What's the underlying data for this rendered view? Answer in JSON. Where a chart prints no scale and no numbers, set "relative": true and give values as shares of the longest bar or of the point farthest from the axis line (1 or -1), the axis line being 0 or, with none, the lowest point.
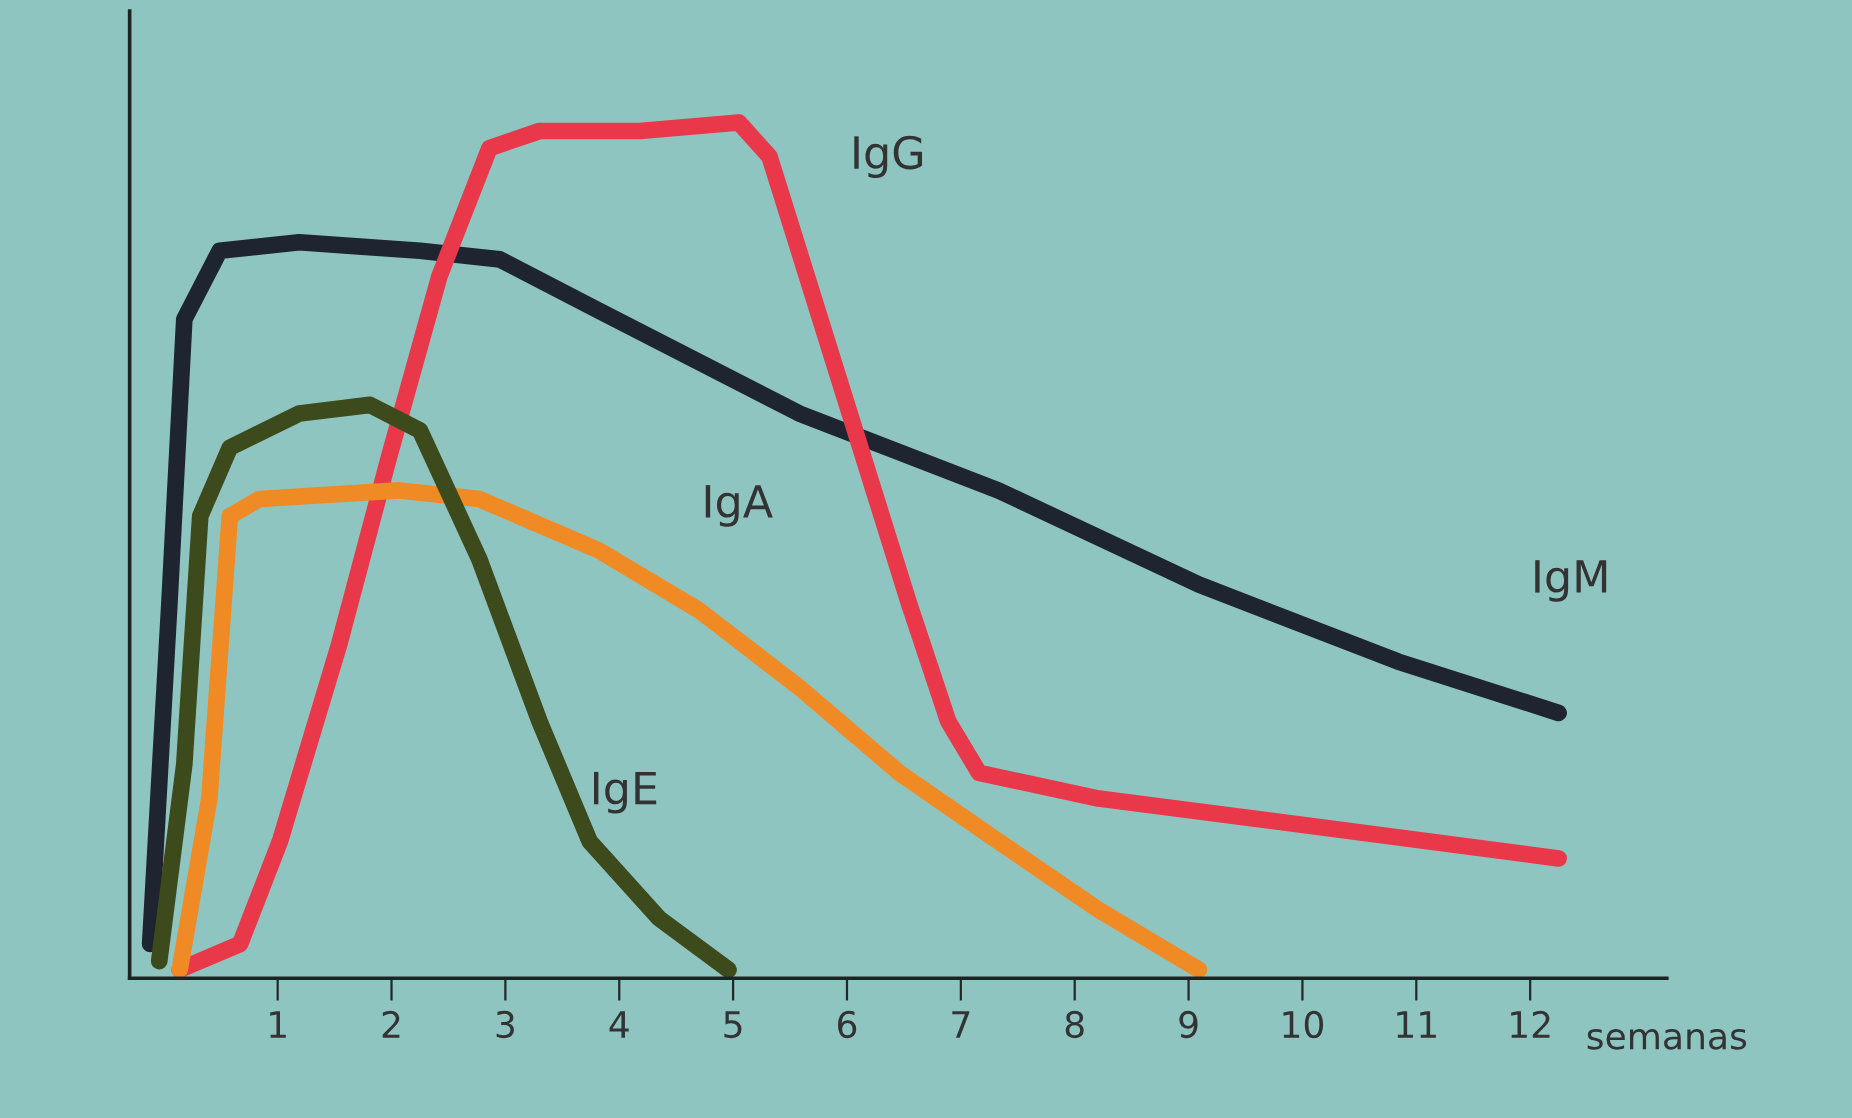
{
  "chart_data": {
    "type": "line",
    "relative": true,
    "xlabel": "semanas",
    "xlim": [
      -0.3,
      13.2
    ],
    "xticks": [
      1,
      2,
      3,
      4,
      5,
      6,
      7,
      8,
      9,
      10,
      11,
      12
    ],
    "grid": false,
    "legend": false,
    "marker": "none",
    "line_style": "solid",
    "series": [
      {
        "name": "IgM",
        "color": "#1e2430",
        "x": [
          -0.12,
          0.05,
          0.18,
          0.49,
          1.19,
          2.25,
          2.95,
          3.82,
          5.58,
          7.33,
          9.09,
          10.84,
          12.25
        ],
        "values": [
          0.04,
          0.44,
          0.77,
          0.85,
          0.86,
          0.85,
          0.84,
          0.78,
          0.66,
          0.57,
          0.46,
          0.37,
          0.31
        ]
      },
      {
        "name": "IgG",
        "color": "#e8384a",
        "x": [
          0.14,
          0.67,
          1.02,
          1.54,
          1.98,
          2.42,
          2.86,
          3.3,
          4.18,
          5.05,
          5.32,
          5.93,
          6.54,
          6.89,
          7.16,
          8.21,
          9.96,
          12.25
        ],
        "values": [
          0.01,
          0.04,
          0.16,
          0.39,
          0.61,
          0.82,
          0.97,
          0.99,
          0.99,
          1.0,
          0.96,
          0.7,
          0.44,
          0.3,
          0.24,
          0.21,
          0.18,
          0.14
        ]
      },
      {
        "name": "IgA",
        "color": "#f08a24",
        "x": [
          0.14,
          0.4,
          0.58,
          0.84,
          2.07,
          2.77,
          3.82,
          4.7,
          5.58,
          6.46,
          7.33,
          8.21,
          9.09
        ],
        "values": [
          0.01,
          0.21,
          0.54,
          0.56,
          0.57,
          0.56,
          0.5,
          0.43,
          0.34,
          0.24,
          0.16,
          0.08,
          0.01
        ]
      },
      {
        "name": "IgE",
        "color": "#3d4a1c",
        "x": [
          -0.04,
          0.18,
          0.32,
          0.58,
          1.19,
          1.81,
          2.25,
          2.77,
          3.3,
          3.74,
          4.35,
          4.96
        ],
        "values": [
          0.02,
          0.25,
          0.54,
          0.62,
          0.66,
          0.67,
          0.64,
          0.49,
          0.3,
          0.16,
          0.07,
          0.01
        ]
      }
    ]
  }
}
